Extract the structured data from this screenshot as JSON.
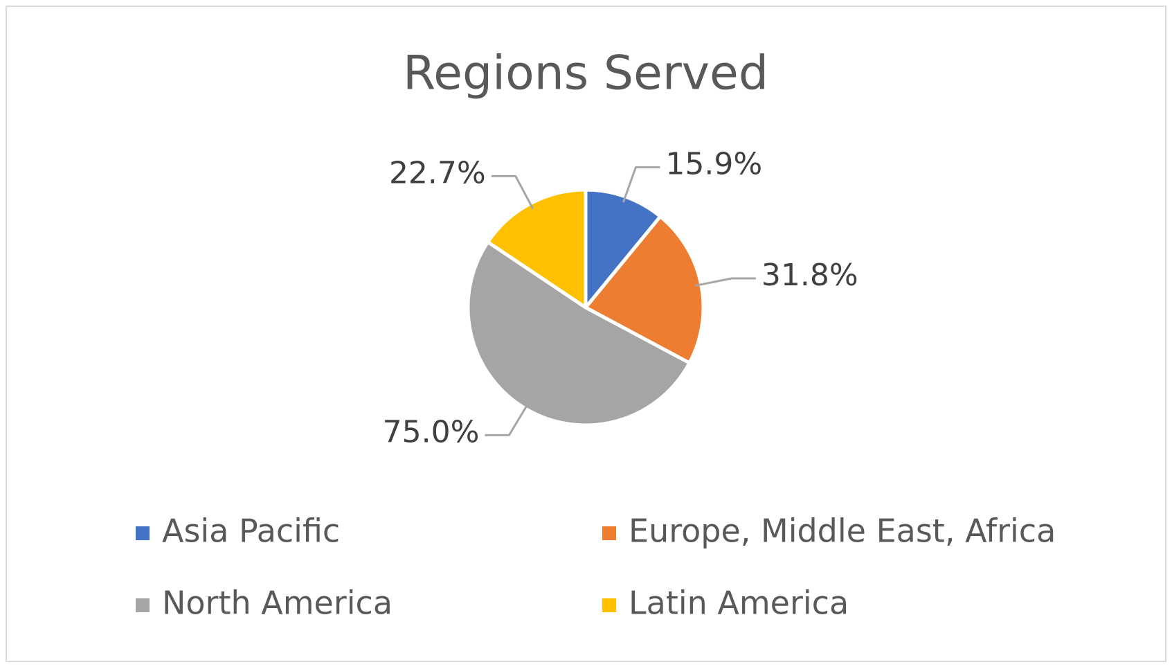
{
  "chart_data": {
    "type": "pie",
    "title": "Regions Served",
    "categories": [
      "Asia Pacific",
      "Europe, Middle East, Africa",
      "North America",
      "Latin America"
    ],
    "values": [
      15.9,
      31.8,
      75.0,
      22.7
    ],
    "value_labels": [
      "15.9%",
      "31.8%",
      "75.0%",
      "22.7%"
    ],
    "colors": [
      "#4472c4",
      "#ed7d31",
      "#a5a5a5",
      "#ffc000"
    ]
  }
}
